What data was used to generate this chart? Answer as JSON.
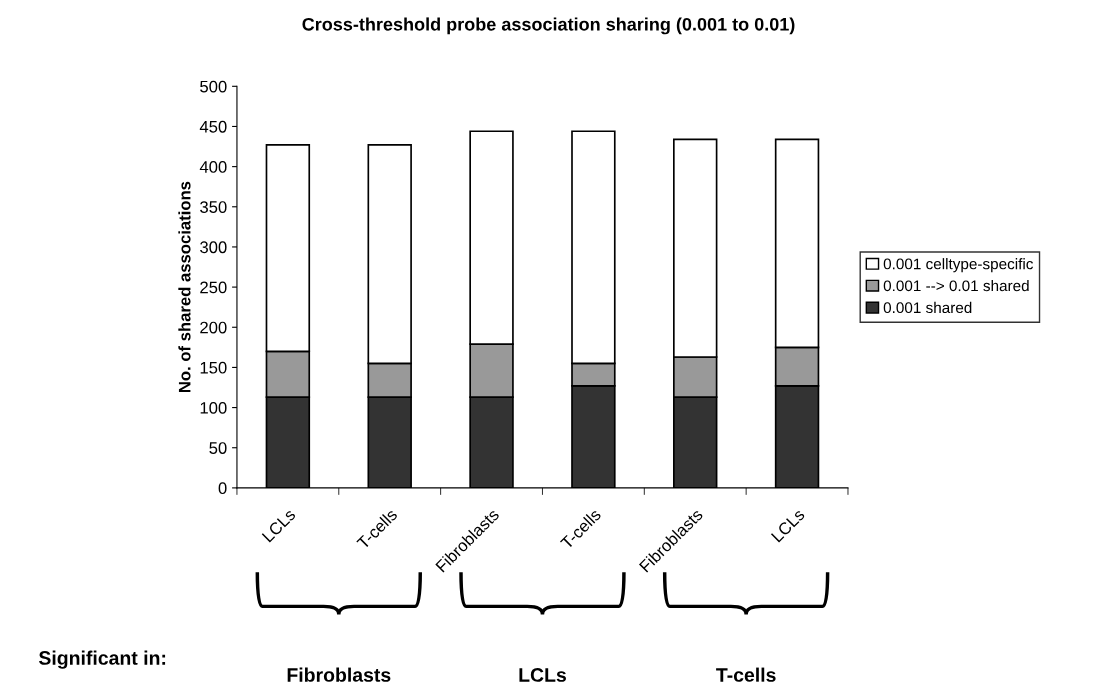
{
  "chart_data": {
    "type": "bar",
    "title": "Cross-threshold probe association sharing (0.001 to 0.01)",
    "ylabel": "No. of shared associations",
    "categories": [
      "LCLs",
      "T-cells",
      "Fibroblasts",
      "T-cells",
      "Fibroblasts",
      "LCLs"
    ],
    "stacked": true,
    "series": [
      {
        "name": "0.001 shared",
        "color": "#333333",
        "values": [
          113,
          113,
          113,
          127,
          113,
          127
        ]
      },
      {
        "name": "0.001 --> 0.01 shared",
        "color": "#999999",
        "values": [
          57,
          42,
          66,
          28,
          50,
          48
        ]
      },
      {
        "name": "0.001 celltype-specific",
        "color": "#ffffff",
        "values": [
          257,
          272,
          265,
          289,
          271,
          259
        ]
      }
    ],
    "ylim": [
      0,
      500
    ],
    "yticks": [
      0,
      50,
      100,
      150,
      200,
      250,
      300,
      350,
      400,
      450,
      500
    ],
    "grid": false,
    "legend": "right",
    "annotations": [
      "Significant in:",
      "Fibroblasts",
      "LCLs",
      "T-cells"
    ]
  }
}
